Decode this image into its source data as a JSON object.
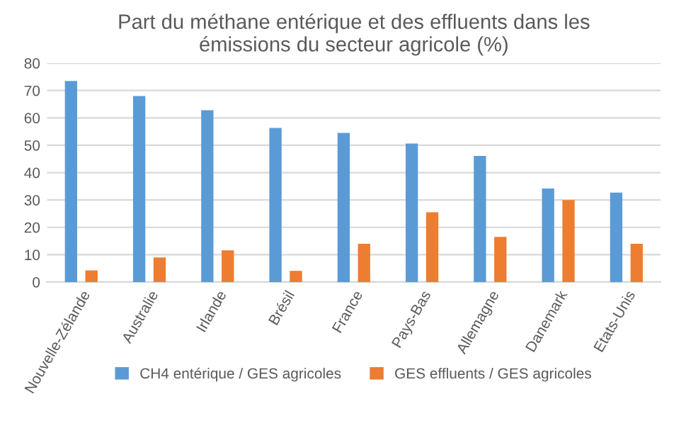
{
  "chart_data": {
    "type": "bar",
    "title": "Part du méthane entérique et des effluents dans les\némissions du secteur agricole (%)",
    "categories": [
      "Nouvelle-Zélande",
      "Australie",
      "Irlande",
      "Brésil",
      "France",
      "Pays-Bas",
      "Allemagne",
      "Danemark",
      "Etats-Unis"
    ],
    "series": [
      {
        "name": "CH4 entérique / GES agricoles",
        "color": "#5b9bd5",
        "values": [
          73.5,
          68,
          62.8,
          56.3,
          54.5,
          50.6,
          46.1,
          34.2,
          32.7
        ]
      },
      {
        "name": "GES effluents / GES agricoles",
        "color": "#ed7d31",
        "values": [
          4.3,
          9,
          11.6,
          4.1,
          14,
          25.5,
          16.5,
          30,
          14
        ]
      }
    ],
    "ylim": [
      0,
      80
    ],
    "yticks": [
      0,
      10,
      20,
      30,
      40,
      50,
      60,
      70,
      80
    ],
    "grid": "y",
    "legend": "bottom"
  }
}
